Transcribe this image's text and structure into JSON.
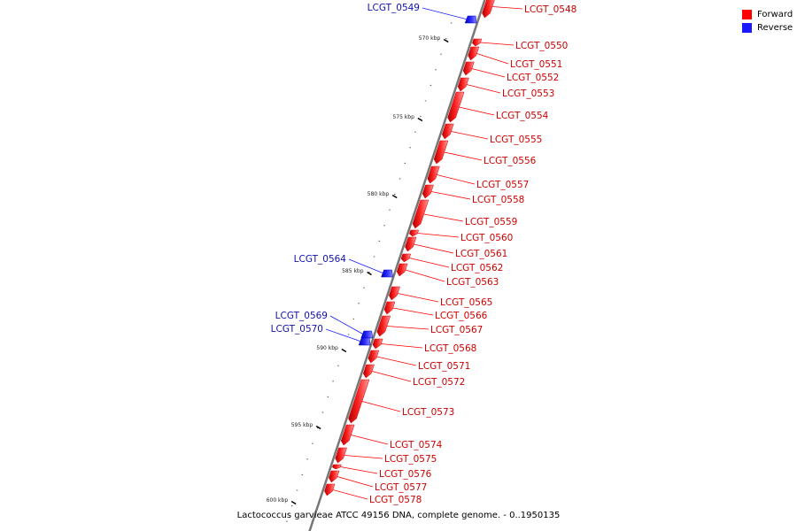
{
  "legend": {
    "forward_label": "Forward",
    "reverse_label": "Reverse",
    "forward_color": "#ff0000",
    "reverse_color": "#1a1aff"
  },
  "caption": "Lactococcus garvieae ATCC 49156 DNA, complete genome. - 0..1950135",
  "ticks": [
    "570 kbp",
    "575 kbp",
    "580 kbp",
    "585 kbp",
    "590 kbp",
    "595 kbp",
    "600 kbp"
  ],
  "genes_forward": [
    "LCGT_0548",
    "LCGT_0550",
    "LCGT_0551",
    "LCGT_0552",
    "LCGT_0553",
    "LCGT_0554",
    "LCGT_0555",
    "LCGT_0556",
    "LCGT_0557",
    "LCGT_0558",
    "LCGT_0559",
    "LCGT_0560",
    "LCGT_0561",
    "LCGT_0562",
    "LCGT_0563",
    "LCGT_0565",
    "LCGT_0566",
    "LCGT_0567",
    "LCGT_0568",
    "LCGT_0571",
    "LCGT_0572",
    "LCGT_0573",
    "LCGT_0574",
    "LCGT_0575",
    "LCGT_0576",
    "LCGT_0577",
    "LCGT_0578"
  ],
  "genes_reverse": [
    "LCGT_0549",
    "LCGT_0564",
    "LCGT_0569",
    "LCGT_0570"
  ]
}
